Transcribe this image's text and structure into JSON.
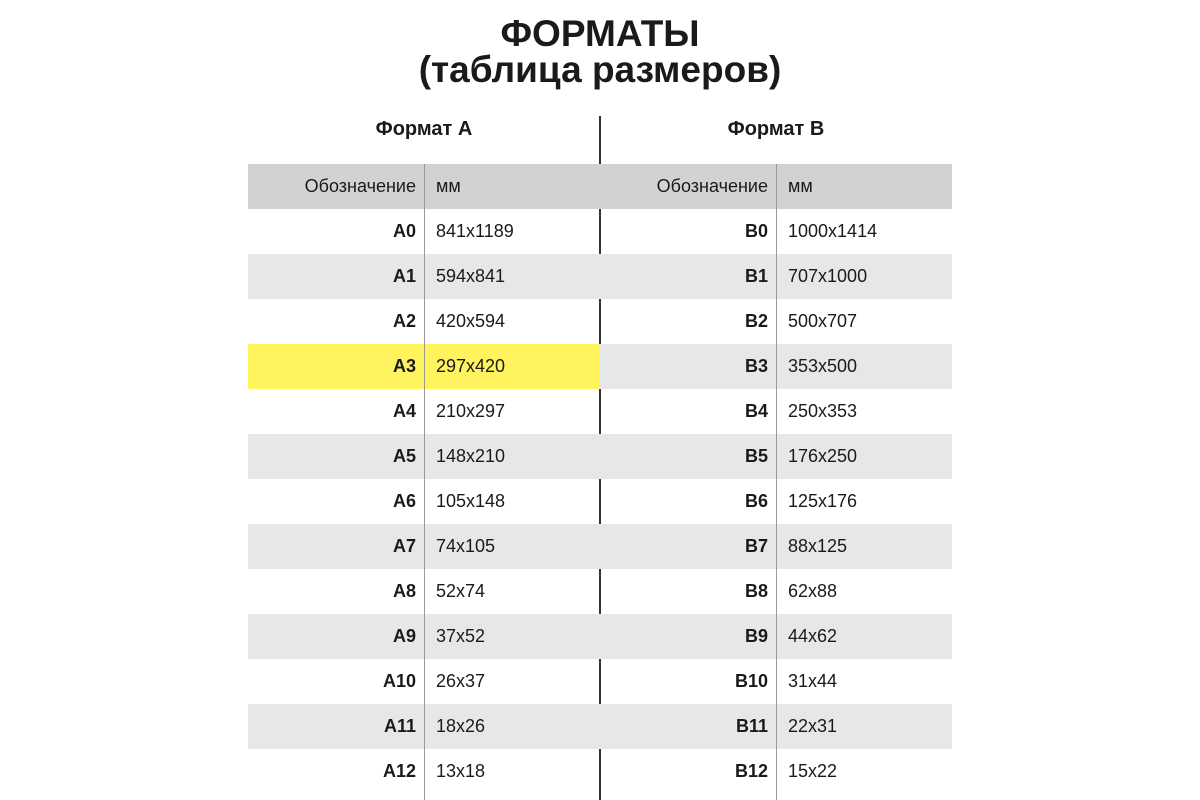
{
  "title_line1": "ФОРМАТЫ",
  "title_line2": "(таблица размеров)",
  "highlight_color": "#fff35e",
  "tables": [
    {
      "heading": "Формат A",
      "col_designation": "Обозначение",
      "col_mm": "мм",
      "rows": [
        {
          "name": "A0",
          "size": "841x1189"
        },
        {
          "name": "A1",
          "size": "594x841"
        },
        {
          "name": "A2",
          "size": "420x594"
        },
        {
          "name": "A3",
          "size": "297x420",
          "highlighted": true
        },
        {
          "name": "A4",
          "size": "210x297"
        },
        {
          "name": "A5",
          "size": "148x210"
        },
        {
          "name": "A6",
          "size": "105x148"
        },
        {
          "name": "A7",
          "size": "74x105"
        },
        {
          "name": "A8",
          "size": "52x74"
        },
        {
          "name": "A9",
          "size": "37x52"
        },
        {
          "name": "A10",
          "size": "26x37"
        },
        {
          "name": "A11",
          "size": "18x26"
        },
        {
          "name": "A12",
          "size": "13x18"
        }
      ]
    },
    {
      "heading": "Формат B",
      "col_designation": "Обозначение",
      "col_mm": "мм",
      "rows": [
        {
          "name": "B0",
          "size": "1000x1414"
        },
        {
          "name": "B1",
          "size": "707x1000"
        },
        {
          "name": "B2",
          "size": "500x707"
        },
        {
          "name": "B3",
          "size": "353x500"
        },
        {
          "name": "B4",
          "size": "250x353"
        },
        {
          "name": "B5",
          "size": "176x250"
        },
        {
          "name": "B6",
          "size": "125x176"
        },
        {
          "name": "B7",
          "size": "88x125"
        },
        {
          "name": "B8",
          "size": "62x88"
        },
        {
          "name": "B9",
          "size": "44x62"
        },
        {
          "name": "B10",
          "size": "31x44"
        },
        {
          "name": "B11",
          "size": "22x31"
        },
        {
          "name": "B12",
          "size": "15x22"
        }
      ]
    }
  ]
}
